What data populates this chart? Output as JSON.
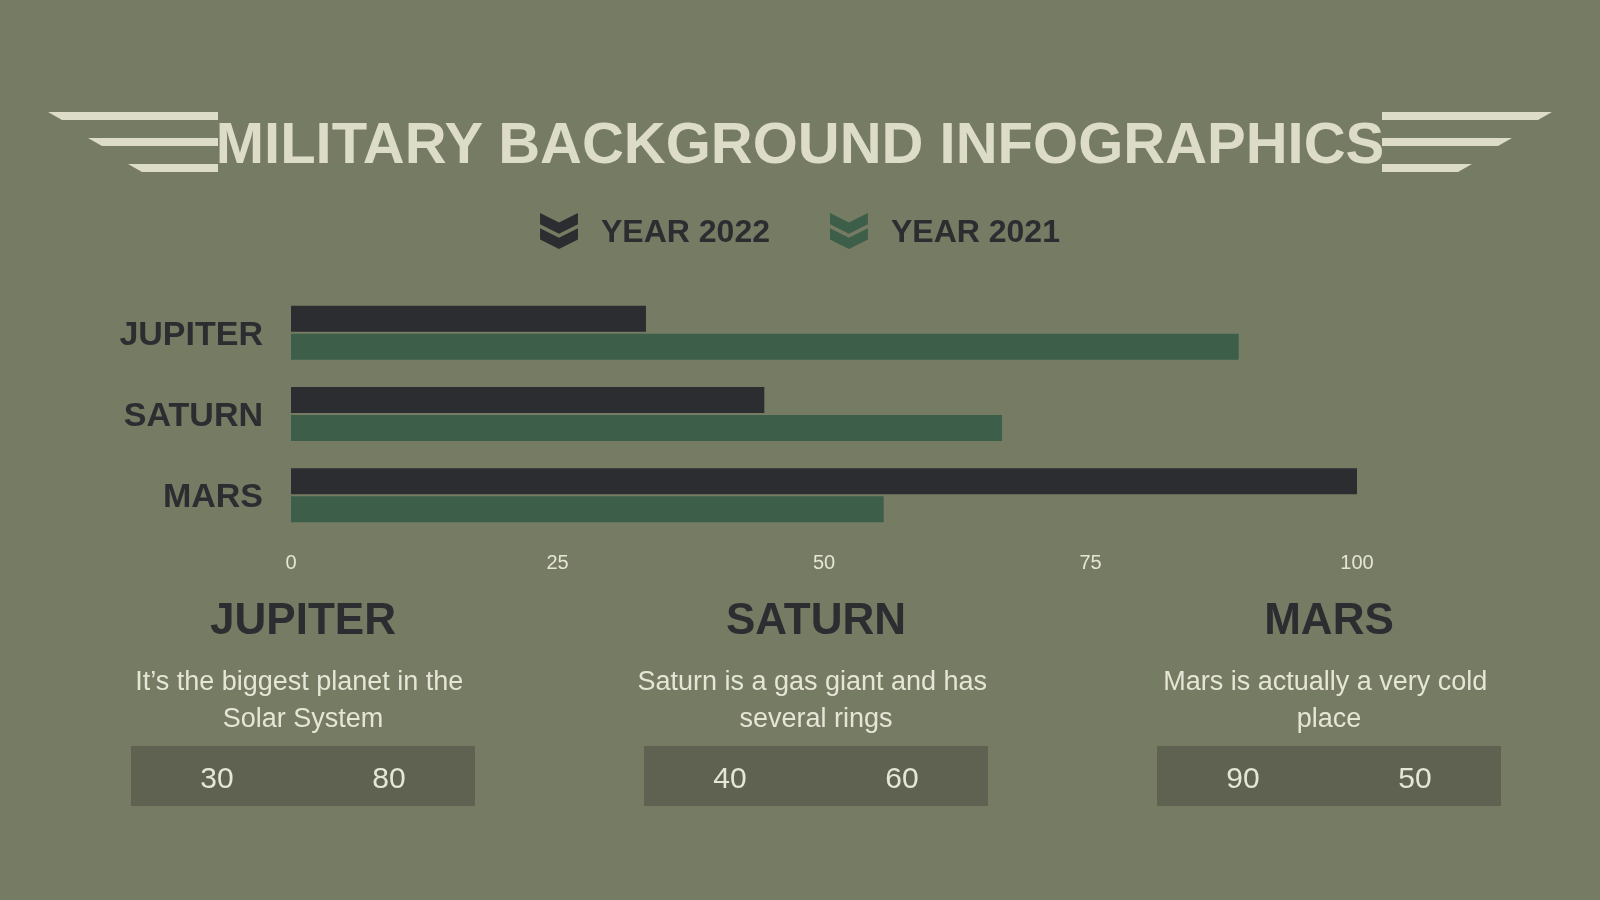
{
  "chart_data": {
    "type": "bar",
    "orientation": "horizontal",
    "title": "MILITARY BACKGROUND INFOGRAPHICS",
    "categories": [
      "JUPITER",
      "SATURN",
      "MARS"
    ],
    "series": [
      {
        "name": "YEAR 2022",
        "color": "#2b2d30",
        "values": [
          33.3,
          44.4,
          100
        ]
      },
      {
        "name": "YEAR 2021",
        "color": "#3d5e48",
        "values": [
          88.9,
          66.7,
          55.6
        ]
      }
    ],
    "xlim": [
      0,
      100
    ],
    "xticks": [
      0,
      25,
      50,
      75,
      100
    ],
    "grid": false,
    "legend": "top",
    "annotations": [
      "It’s the biggest planet in the Solar System",
      "30",
      "80",
      "Saturn is a gas giant and has several rings",
      "40",
      "60",
      "Mars is actually a very cold place",
      "90",
      "50"
    ]
  }
}
